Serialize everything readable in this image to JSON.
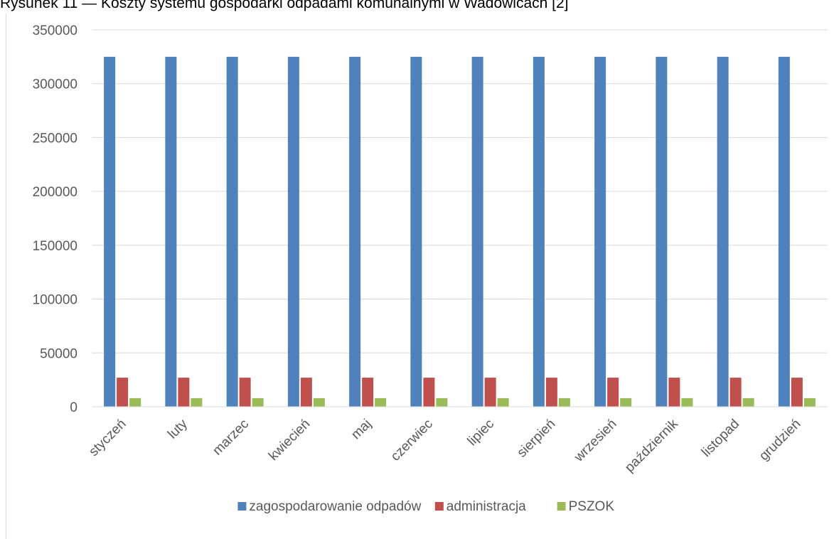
{
  "caption": "Rysunek 11 — Koszty systemu gospodarki odpadami komunalnymi w Wadowicach [2]",
  "chart_data": {
    "type": "bar",
    "title": "",
    "xlabel": "",
    "ylabel": "",
    "ylim": [
      0,
      350000
    ],
    "yticks": [
      0,
      50000,
      100000,
      150000,
      200000,
      250000,
      300000,
      350000
    ],
    "grid": true,
    "legend_position": "bottom",
    "categories": [
      "styczeń",
      "luty",
      "marzec",
      "kwiecień",
      "maj",
      "czerwiec",
      "lipiec",
      "sierpień",
      "wrzesień",
      "październik",
      "listopad",
      "grudzień"
    ],
    "series": [
      {
        "name": "zagospodarowanie odpadów",
        "color": "#4f81bd",
        "values": [
          325000,
          325000,
          325000,
          325000,
          325000,
          325000,
          325000,
          325000,
          325000,
          325000,
          325000,
          325000
        ]
      },
      {
        "name": "administracja",
        "color": "#c0504d",
        "values": [
          27000,
          27000,
          27000,
          27000,
          27000,
          27000,
          27000,
          27000,
          27000,
          27000,
          27000,
          27000
        ]
      },
      {
        "name": "PSZOK",
        "color": "#9bbb59",
        "values": [
          8000,
          8000,
          8000,
          8000,
          8000,
          8000,
          8000,
          8000,
          8000,
          8000,
          8000,
          8000
        ]
      }
    ]
  }
}
